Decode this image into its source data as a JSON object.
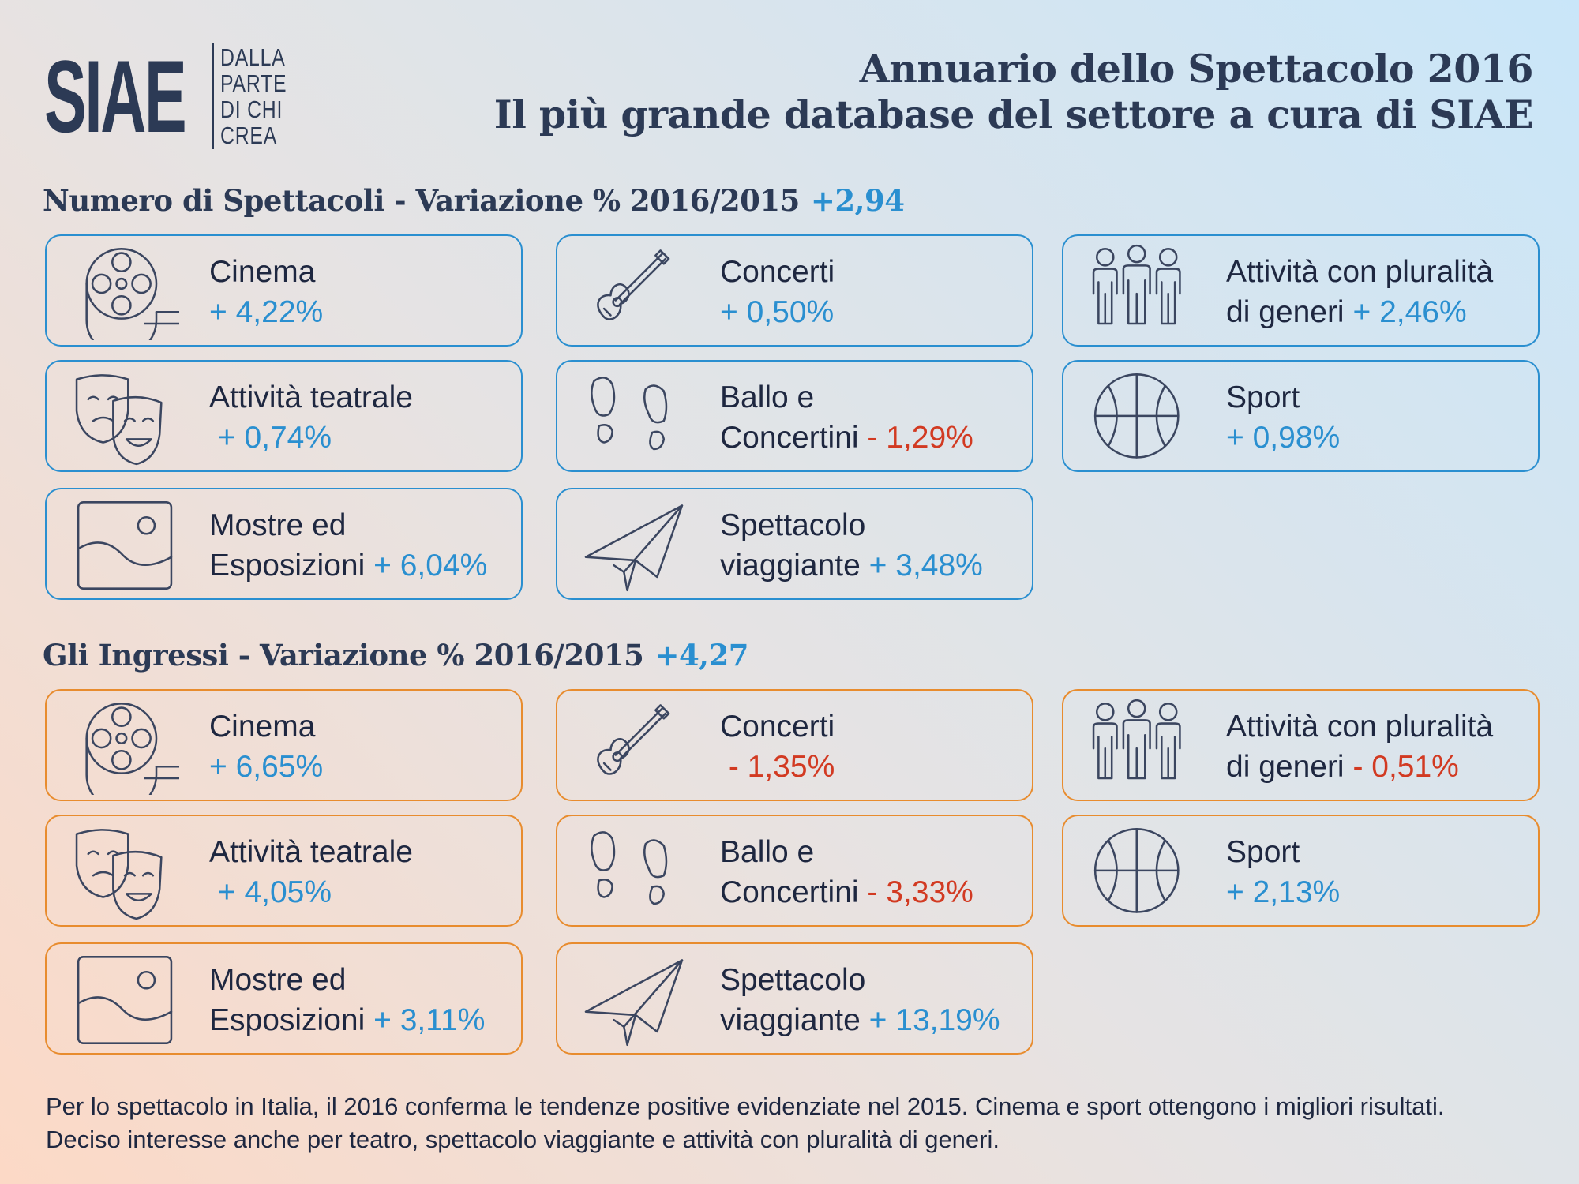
{
  "logo": {
    "mark": "SIAE",
    "tagline": [
      "DALLA",
      "PARTE",
      "DI CHI",
      "CREA"
    ]
  },
  "header": {
    "title": "Annuario dello Spettacolo 2016",
    "subtitle": "Il più grande database del settore a cura di SIAE"
  },
  "section_spettacoli": {
    "title": "Numero di Spettacoli - Variazione % 2016/2015",
    "total": "+2,94",
    "cards": [
      {
        "line1": "Cinema",
        "line1_value": "",
        "line2": "",
        "value": "+ 4,22%",
        "trend": "pos",
        "icon": "film-reel-icon"
      },
      {
        "line1": "Concerti",
        "line1_value": "",
        "line2": "",
        "value": "+ 0,50%",
        "trend": "pos",
        "icon": "guitar-icon"
      },
      {
        "line1": "Attività con pluralità",
        "line1_value": "",
        "line2": "di generi",
        "value": "+ 2,46%",
        "trend": "pos",
        "icon": "people-icon"
      },
      {
        "line1": "Attività teatrale",
        "line1_value": "",
        "line2": "",
        "value": " + 0,74%",
        "trend": "pos",
        "icon": "theatre-masks-icon"
      },
      {
        "line1": "Ballo e",
        "line1_value": "",
        "line2": "Concertini",
        "value": "- 1,29%",
        "trend": "neg",
        "icon": "footprints-icon"
      },
      {
        "line1": "Sport",
        "line1_value": "",
        "line2": "",
        "value": "+ 0,98%",
        "trend": "pos",
        "icon": "basketball-icon"
      },
      {
        "line1": "Mostre ed",
        "line1_value": "",
        "line2": "Esposizioni",
        "value": "+ 6,04%",
        "trend": "pos",
        "icon": "picture-icon"
      },
      {
        "line1": "Spettacolo",
        "line1_value": "",
        "line2": "viaggiante",
        "value": "+ 3,48%",
        "trend": "pos",
        "icon": "paper-plane-icon"
      }
    ]
  },
  "section_ingressi": {
    "title": "Gli Ingressi - Variazione % 2016/2015",
    "total": "+4,27",
    "cards": [
      {
        "line1": "Cinema",
        "line2": "",
        "value": "+ 6,65%",
        "trend": "pos",
        "icon": "film-reel-icon"
      },
      {
        "line1": "Concerti",
        "line2": "",
        "value": " - 1,35%",
        "trend": "neg",
        "icon": "guitar-icon"
      },
      {
        "line1": "Attività con pluralità",
        "line2": "di generi",
        "value": "- 0,51%",
        "trend": "neg",
        "icon": "people-icon"
      },
      {
        "line1": "Attività teatrale",
        "line2": "",
        "value": " + 4,05%",
        "trend": "pos",
        "icon": "theatre-masks-icon"
      },
      {
        "line1": "Ballo e",
        "line2": "Concertini",
        "value": "- 3,33%",
        "trend": "neg",
        "icon": "footprints-icon"
      },
      {
        "line1": "Sport",
        "line2": "",
        "value": "+ 2,13%",
        "trend": "pos",
        "icon": "basketball-icon"
      },
      {
        "line1": "Mostre ed",
        "line2": "Esposizioni",
        "value": "+ 3,11%",
        "trend": "pos",
        "icon": "picture-icon"
      },
      {
        "line1": "Spettacolo",
        "line2": "viaggiante",
        "value": "+ 13,19%",
        "trend": "pos",
        "icon": "paper-plane-icon"
      }
    ]
  },
  "footer": {
    "line1": "Per lo spettacolo in Italia, il 2016 conferma le tendenze positive evidenziate nel 2015. Cinema e sport ottengono i migliori risultati.",
    "line2": "Deciso interesse anche per teatro, spettacolo viaggiante e attività con pluralità di generi."
  },
  "colors": {
    "positive": "#2a8fd0",
    "negative": "#d23a22",
    "border_spettacoli": "#2a8fd0",
    "border_ingressi": "#e88c2e",
    "text": "#2c3a55"
  }
}
